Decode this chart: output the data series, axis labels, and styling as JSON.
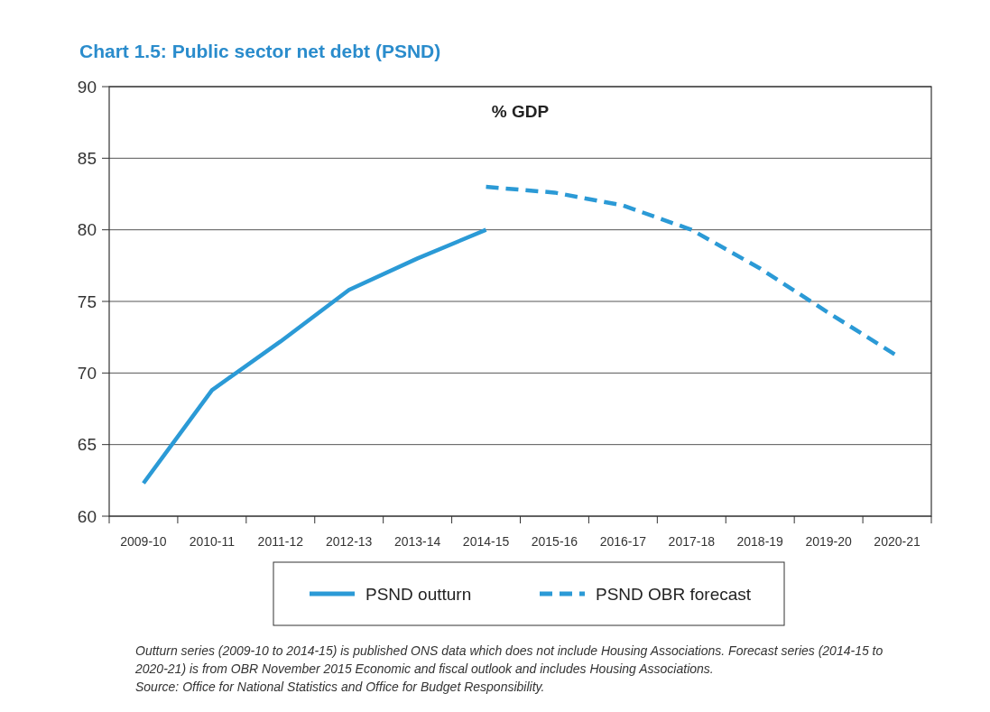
{
  "chart_data": {
    "type": "line",
    "title": "Chart 1.5: Public sector net debt (PSND)",
    "ylabel": "% GDP",
    "categories": [
      "2009-10",
      "2010-11",
      "2011-12",
      "2012-13",
      "2013-14",
      "2014-15",
      "2015-16",
      "2016-17",
      "2017-18",
      "2018-19",
      "2019-20",
      "2020-21"
    ],
    "series": [
      {
        "name": "PSND outturn",
        "color": "#2b9ad6",
        "line_style": "solid",
        "values": [
          62.3,
          68.8,
          72.2,
          75.8,
          78.0,
          80.0,
          null,
          null,
          null,
          null,
          null,
          null
        ]
      },
      {
        "name": "PSND OBR forecast",
        "color": "#2b9ad6",
        "line_style": "dashed",
        "values": [
          null,
          null,
          null,
          null,
          null,
          83.0,
          82.6,
          81.7,
          80.0,
          77.3,
          74.2,
          71.2
        ]
      }
    ],
    "ylim": [
      60,
      90
    ],
    "yticks": [
      60,
      65,
      70,
      75,
      80,
      85,
      90
    ],
    "grid": "y",
    "legend": "bottom",
    "marker": "none",
    "annotations": [
      "Outturn series (2009-10 to 2014-15) is published ONS data which does not include Housing Associations. Forecast series (2014-15 to 2020-21) is from OBR November 2015 Economic and fiscal outlook and includes Housing Associations.",
      "Source: Office for National Statistics and Office for Budget Responsibility."
    ]
  }
}
